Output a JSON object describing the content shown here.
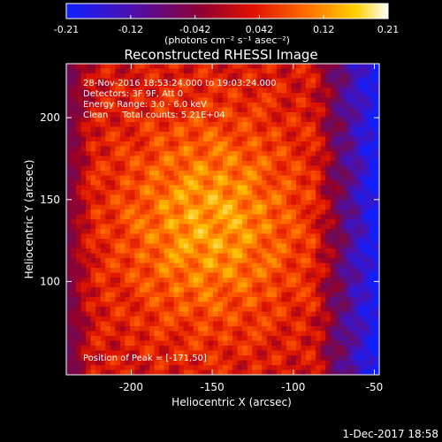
{
  "colorbar": {
    "ticks": [
      "-0.21",
      "-0.12",
      "-0.042",
      "0.042",
      "0.12",
      "0.21"
    ],
    "label": "(photons cm⁻² s⁻¹ asec⁻²)",
    "range": [
      -0.21,
      0.21
    ]
  },
  "title": "Reconstructed RHESSI Image",
  "annotations": {
    "line1": "28-Nov-2016 18:53:24.000 to 19:03:24.000",
    "line2": "Detectors: 3F 9F, Att 0",
    "line3": "Energy Range: 3.0 - 6.0 keV",
    "line4": "Clean     Total counts: 5.21E+04",
    "peak": "Position of Peak = [-171,50]"
  },
  "footer": {
    "date": "1-Dec-2017 18:58"
  },
  "colors": {
    "background": "#000000",
    "text": "#ffffff",
    "low": "#1020ff",
    "high": "#ffffff"
  },
  "chart_data": {
    "type": "heatmap",
    "title": "Reconstructed RHESSI Image",
    "xlabel": "Heliocentric X (arcsec)",
    "ylabel": "Heliocentric Y (arcsec)",
    "xlim": [
      -240,
      -47
    ],
    "ylim": [
      43,
      233
    ],
    "xticks": [
      "-200",
      "-150",
      "-100",
      "-50"
    ],
    "yticks": [
      "100",
      "150",
      "200"
    ],
    "xtick_values": [
      -200,
      -150,
      -100,
      -50
    ],
    "ytick_values": [
      100,
      150,
      200
    ],
    "colormap": "blue-purple-red-orange-yellow-white",
    "value_range": [
      -0.21,
      0.21
    ],
    "peak_position": [
      -171,
      50
    ]
  }
}
